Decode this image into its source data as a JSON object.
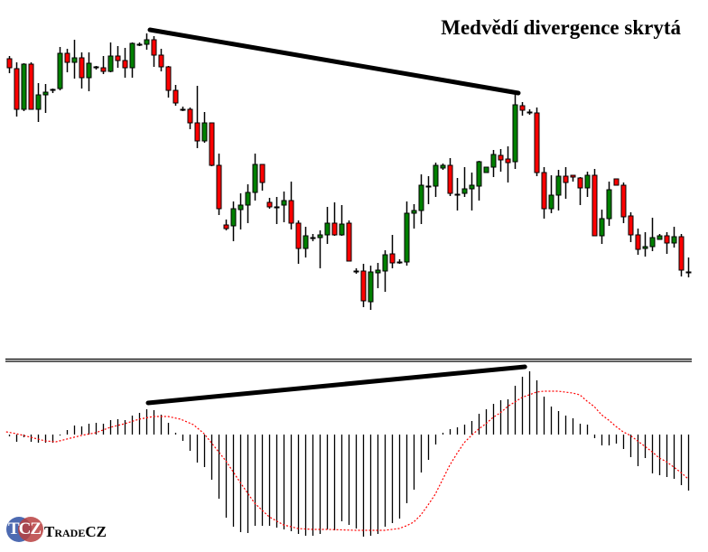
{
  "chart_data": [
    {
      "type": "candlestick",
      "title": "Medvědí divergence skrytá",
      "ylim": [
        0,
        400
      ],
      "colors": {
        "up": "#008000",
        "down": "#ff0000",
        "outline": "#000000"
      },
      "ohlc": [
        [
          335,
          338,
          319,
          325
        ],
        [
          324,
          331,
          271,
          279
        ],
        [
          279,
          330,
          277,
          329
        ],
        [
          329,
          331,
          279,
          279
        ],
        [
          279,
          308,
          265,
          295
        ],
        [
          295,
          307,
          275,
          298
        ],
        [
          301,
          302,
          297,
          301
        ],
        [
          302,
          348,
          300,
          341
        ],
        [
          341,
          346,
          320,
          331
        ],
        [
          331,
          356,
          313,
          336
        ],
        [
          336,
          342,
          302,
          314
        ],
        [
          314,
          342,
          299,
          330
        ],
        [
          326,
          327,
          323,
          326
        ],
        [
          325,
          338,
          318,
          321
        ],
        [
          321,
          353,
          320,
          338
        ],
        [
          338,
          349,
          325,
          333
        ],
        [
          333,
          347,
          314,
          325
        ],
        [
          325,
          353,
          314,
          352
        ],
        [
          351,
          353,
          349,
          351
        ],
        [
          351,
          363,
          345,
          356
        ],
        [
          356,
          360,
          326,
          339
        ],
        [
          339,
          346,
          321,
          326
        ],
        [
          326,
          327,
          292,
          300
        ],
        [
          300,
          306,
          283,
          286
        ],
        [
          279,
          282,
          277,
          279
        ],
        [
          279,
          281,
          257,
          264
        ],
        [
          264,
          305,
          236,
          244
        ],
        [
          244,
          276,
          242,
          264
        ],
        [
          264,
          264,
          216,
          217
        ],
        [
          217,
          230,
          162,
          169
        ],
        [
          151,
          157,
          145,
          147
        ],
        [
          150,
          177,
          133,
          169
        ],
        [
          168,
          186,
          146,
          173
        ],
        [
          173,
          196,
          153,
          187
        ],
        [
          187,
          230,
          178,
          218
        ],
        [
          218,
          218,
          189,
          198
        ],
        [
          176,
          181,
          169,
          171
        ],
        [
          171,
          182,
          152,
          171
        ],
        [
          173,
          188,
          154,
          178
        ],
        [
          178,
          199,
          146,
          153
        ],
        [
          153,
          156,
          108,
          125
        ],
        [
          125,
          149,
          115,
          139
        ],
        [
          137,
          141,
          133,
          137
        ],
        [
          137,
          145,
          103,
          140
        ],
        [
          140,
          171,
          130,
          153
        ],
        [
          153,
          176,
          139,
          140
        ],
        [
          140,
          173,
          139,
          152
        ],
        [
          153,
          156,
          111,
          111
        ],
        [
          100,
          103,
          97,
          100
        ],
        [
          100,
          108,
          60,
          67
        ],
        [
          66,
          106,
          57,
          99
        ],
        [
          98,
          109,
          81,
          101
        ],
        [
          100,
          123,
          77,
          118
        ],
        [
          119,
          140,
          103,
          109
        ],
        [
          110,
          113,
          108,
          110
        ],
        [
          110,
          177,
          106,
          164
        ],
        [
          164,
          174,
          147,
          167
        ],
        [
          167,
          207,
          152,
          195
        ],
        [
          194,
          205,
          174,
          194
        ],
        [
          194,
          220,
          182,
          217
        ],
        [
          214,
          219,
          212,
          217
        ],
        [
          217,
          225,
          183,
          186
        ],
        [
          185,
          203,
          167,
          185
        ],
        [
          186,
          215,
          182,
          191
        ],
        [
          191,
          209,
          167,
          195
        ],
        [
          194,
          222,
          178,
          221
        ],
        [
          209,
          215,
          209,
          215
        ],
        [
          215,
          234,
          204,
          229
        ],
        [
          228,
          235,
          210,
          223
        ],
        [
          224,
          238,
          198,
          220
        ],
        [
          221,
          296,
          213,
          284
        ],
        [
          283,
          287,
          272,
          278
        ],
        [
          276,
          279,
          273,
          276
        ],
        [
          275,
          281,
          205,
          209
        ],
        [
          209,
          215,
          158,
          169
        ],
        [
          169,
          206,
          164,
          184
        ],
        [
          184,
          212,
          167,
          205
        ],
        [
          205,
          215,
          180,
          198
        ],
        [
          206,
          206,
          199,
          204
        ],
        [
          203,
          204,
          173,
          192
        ],
        [
          192,
          210,
          182,
          206
        ],
        [
          206,
          213,
          139,
          139
        ],
        [
          139,
          168,
          130,
          158
        ],
        [
          158,
          199,
          150,
          190
        ],
        [
          202,
          202,
          195,
          195
        ],
        [
          195,
          198,
          153,
          160
        ],
        [
          161,
          165,
          132,
          140
        ],
        [
          140,
          147,
          118,
          124
        ],
        [
          125,
          143,
          116,
          127
        ],
        [
          127,
          159,
          122,
          137
        ],
        [
          135,
          141,
          135,
          139
        ],
        [
          139,
          143,
          119,
          131
        ],
        [
          131,
          149,
          126,
          138
        ],
        [
          138,
          141,
          94,
          101
        ],
        [
          99,
          115,
          93,
          99
        ]
      ],
      "trendline": {
        "from": [
          19.5,
          367
        ],
        "to": [
          70.5,
          297
        ],
        "color": "#000000"
      }
    },
    {
      "type": "bar+line",
      "name": "MACD",
      "histogram": [
        -2,
        -8,
        -3,
        -8,
        -9,
        -9,
        -9,
        0,
        5,
        10,
        9,
        12,
        13,
        12,
        16,
        17,
        16,
        21,
        24,
        28,
        27,
        22,
        13,
        2,
        -7,
        -18,
        -31,
        -36,
        -50,
        -71,
        -92,
        -102,
        -108,
        -109,
        -101,
        -101,
        -101,
        -103,
        -105,
        -107,
        -110,
        -112,
        -112,
        -110,
        -105,
        -106,
        -96,
        -100,
        -104,
        -113,
        -112,
        -110,
        -102,
        -98,
        -93,
        -76,
        -61,
        -42,
        -28,
        -11,
        2,
        6,
        8,
        11,
        15,
        23,
        28,
        34,
        38,
        39,
        54,
        64,
        70,
        60,
        42,
        31,
        26,
        21,
        18,
        12,
        11,
        -4,
        -12,
        -12,
        -10,
        -16,
        -25,
        -35,
        -26,
        -43,
        -45,
        -47,
        -49,
        -56,
        -62
      ],
      "signal": [
        [
          -0.4,
          3
        ],
        [
          1,
          1
        ],
        [
          3,
          -3
        ],
        [
          5,
          -7
        ],
        [
          6.5,
          -8
        ],
        [
          8,
          -5
        ],
        [
          10,
          -1
        ],
        [
          12,
          2
        ],
        [
          14,
          8
        ],
        [
          16,
          12
        ],
        [
          18,
          17
        ],
        [
          20,
          20
        ],
        [
          22,
          20
        ],
        [
          23.75,
          17
        ],
        [
          25.5,
          11
        ],
        [
          27,
          1
        ],
        [
          28,
          -9
        ],
        [
          30,
          -29
        ],
        [
          32,
          -53
        ],
        [
          34,
          -76
        ],
        [
          36,
          -91
        ],
        [
          38,
          -100
        ],
        [
          40,
          -104
        ],
        [
          42,
          -105
        ],
        [
          44,
          -105
        ],
        [
          48,
          -106
        ],
        [
          52,
          -106
        ],
        [
          54,
          -104
        ],
        [
          55,
          -101
        ],
        [
          56,
          -97
        ],
        [
          57,
          -89
        ],
        [
          58,
          -78
        ],
        [
          59,
          -66
        ],
        [
          60,
          -50
        ],
        [
          61,
          -34
        ],
        [
          62,
          -21
        ],
        [
          63,
          -9
        ],
        [
          64,
          -1
        ],
        [
          65,
          6
        ],
        [
          66,
          12
        ],
        [
          67,
          19
        ],
        [
          68,
          24
        ],
        [
          69,
          31
        ],
        [
          70,
          36
        ],
        [
          71,
          41
        ],
        [
          72,
          44
        ],
        [
          73,
          47
        ],
        [
          74,
          48
        ],
        [
          76,
          48
        ],
        [
          78,
          46
        ],
        [
          79,
          44
        ],
        [
          80,
          37
        ],
        [
          81,
          31
        ],
        [
          82,
          22
        ],
        [
          83,
          16
        ],
        [
          84,
          9
        ],
        [
          85,
          3
        ],
        [
          86,
          -1
        ],
        [
          87,
          -7
        ],
        [
          88,
          -13
        ],
        [
          89,
          -19
        ],
        [
          90,
          -26
        ],
        [
          91,
          -30
        ],
        [
          92,
          -36
        ],
        [
          93,
          -42
        ],
        [
          94,
          -49
        ]
      ],
      "signal_color": "#ff0000",
      "trendline": {
        "from": [
          19.25,
          35
        ],
        "to": [
          71.4,
          75
        ],
        "color": "#000000"
      }
    }
  ],
  "logo": {
    "abbr": "TCZ",
    "name": "TradeCZ"
  }
}
